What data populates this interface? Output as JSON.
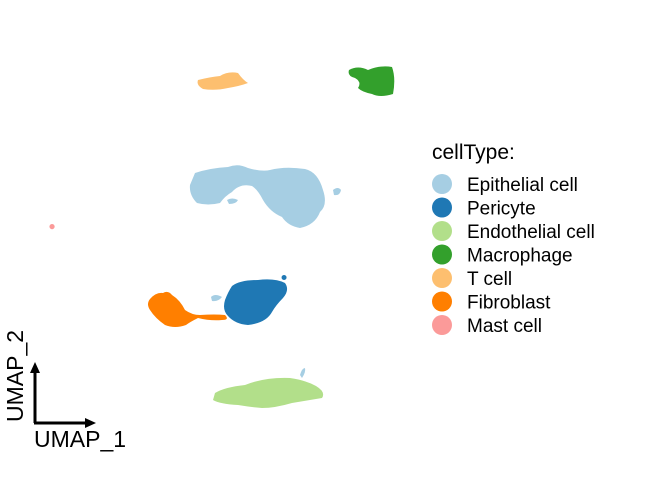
{
  "chart_data": {
    "type": "scatter",
    "title": "",
    "xlabel": "UMAP_1",
    "ylabel": "UMAP_2",
    "grid": false,
    "axis_ticks": false,
    "legend": {
      "title": "cellType:",
      "placement": "right",
      "entries": [
        {
          "label": "Epithelial cell",
          "color": "#A6CEE3"
        },
        {
          "label": "Pericyte",
          "color": "#1F78B4"
        },
        {
          "label": "Endothelial cell",
          "color": "#B2DF8A"
        },
        {
          "label": "Macrophage",
          "color": "#33A02C"
        },
        {
          "label": "T cell",
          "color": "#FDBF6F"
        },
        {
          "label": "Fibroblast",
          "color": "#FF7F00"
        },
        {
          "label": "Mast cell",
          "color": "#FB9A99"
        }
      ]
    }
  }
}
